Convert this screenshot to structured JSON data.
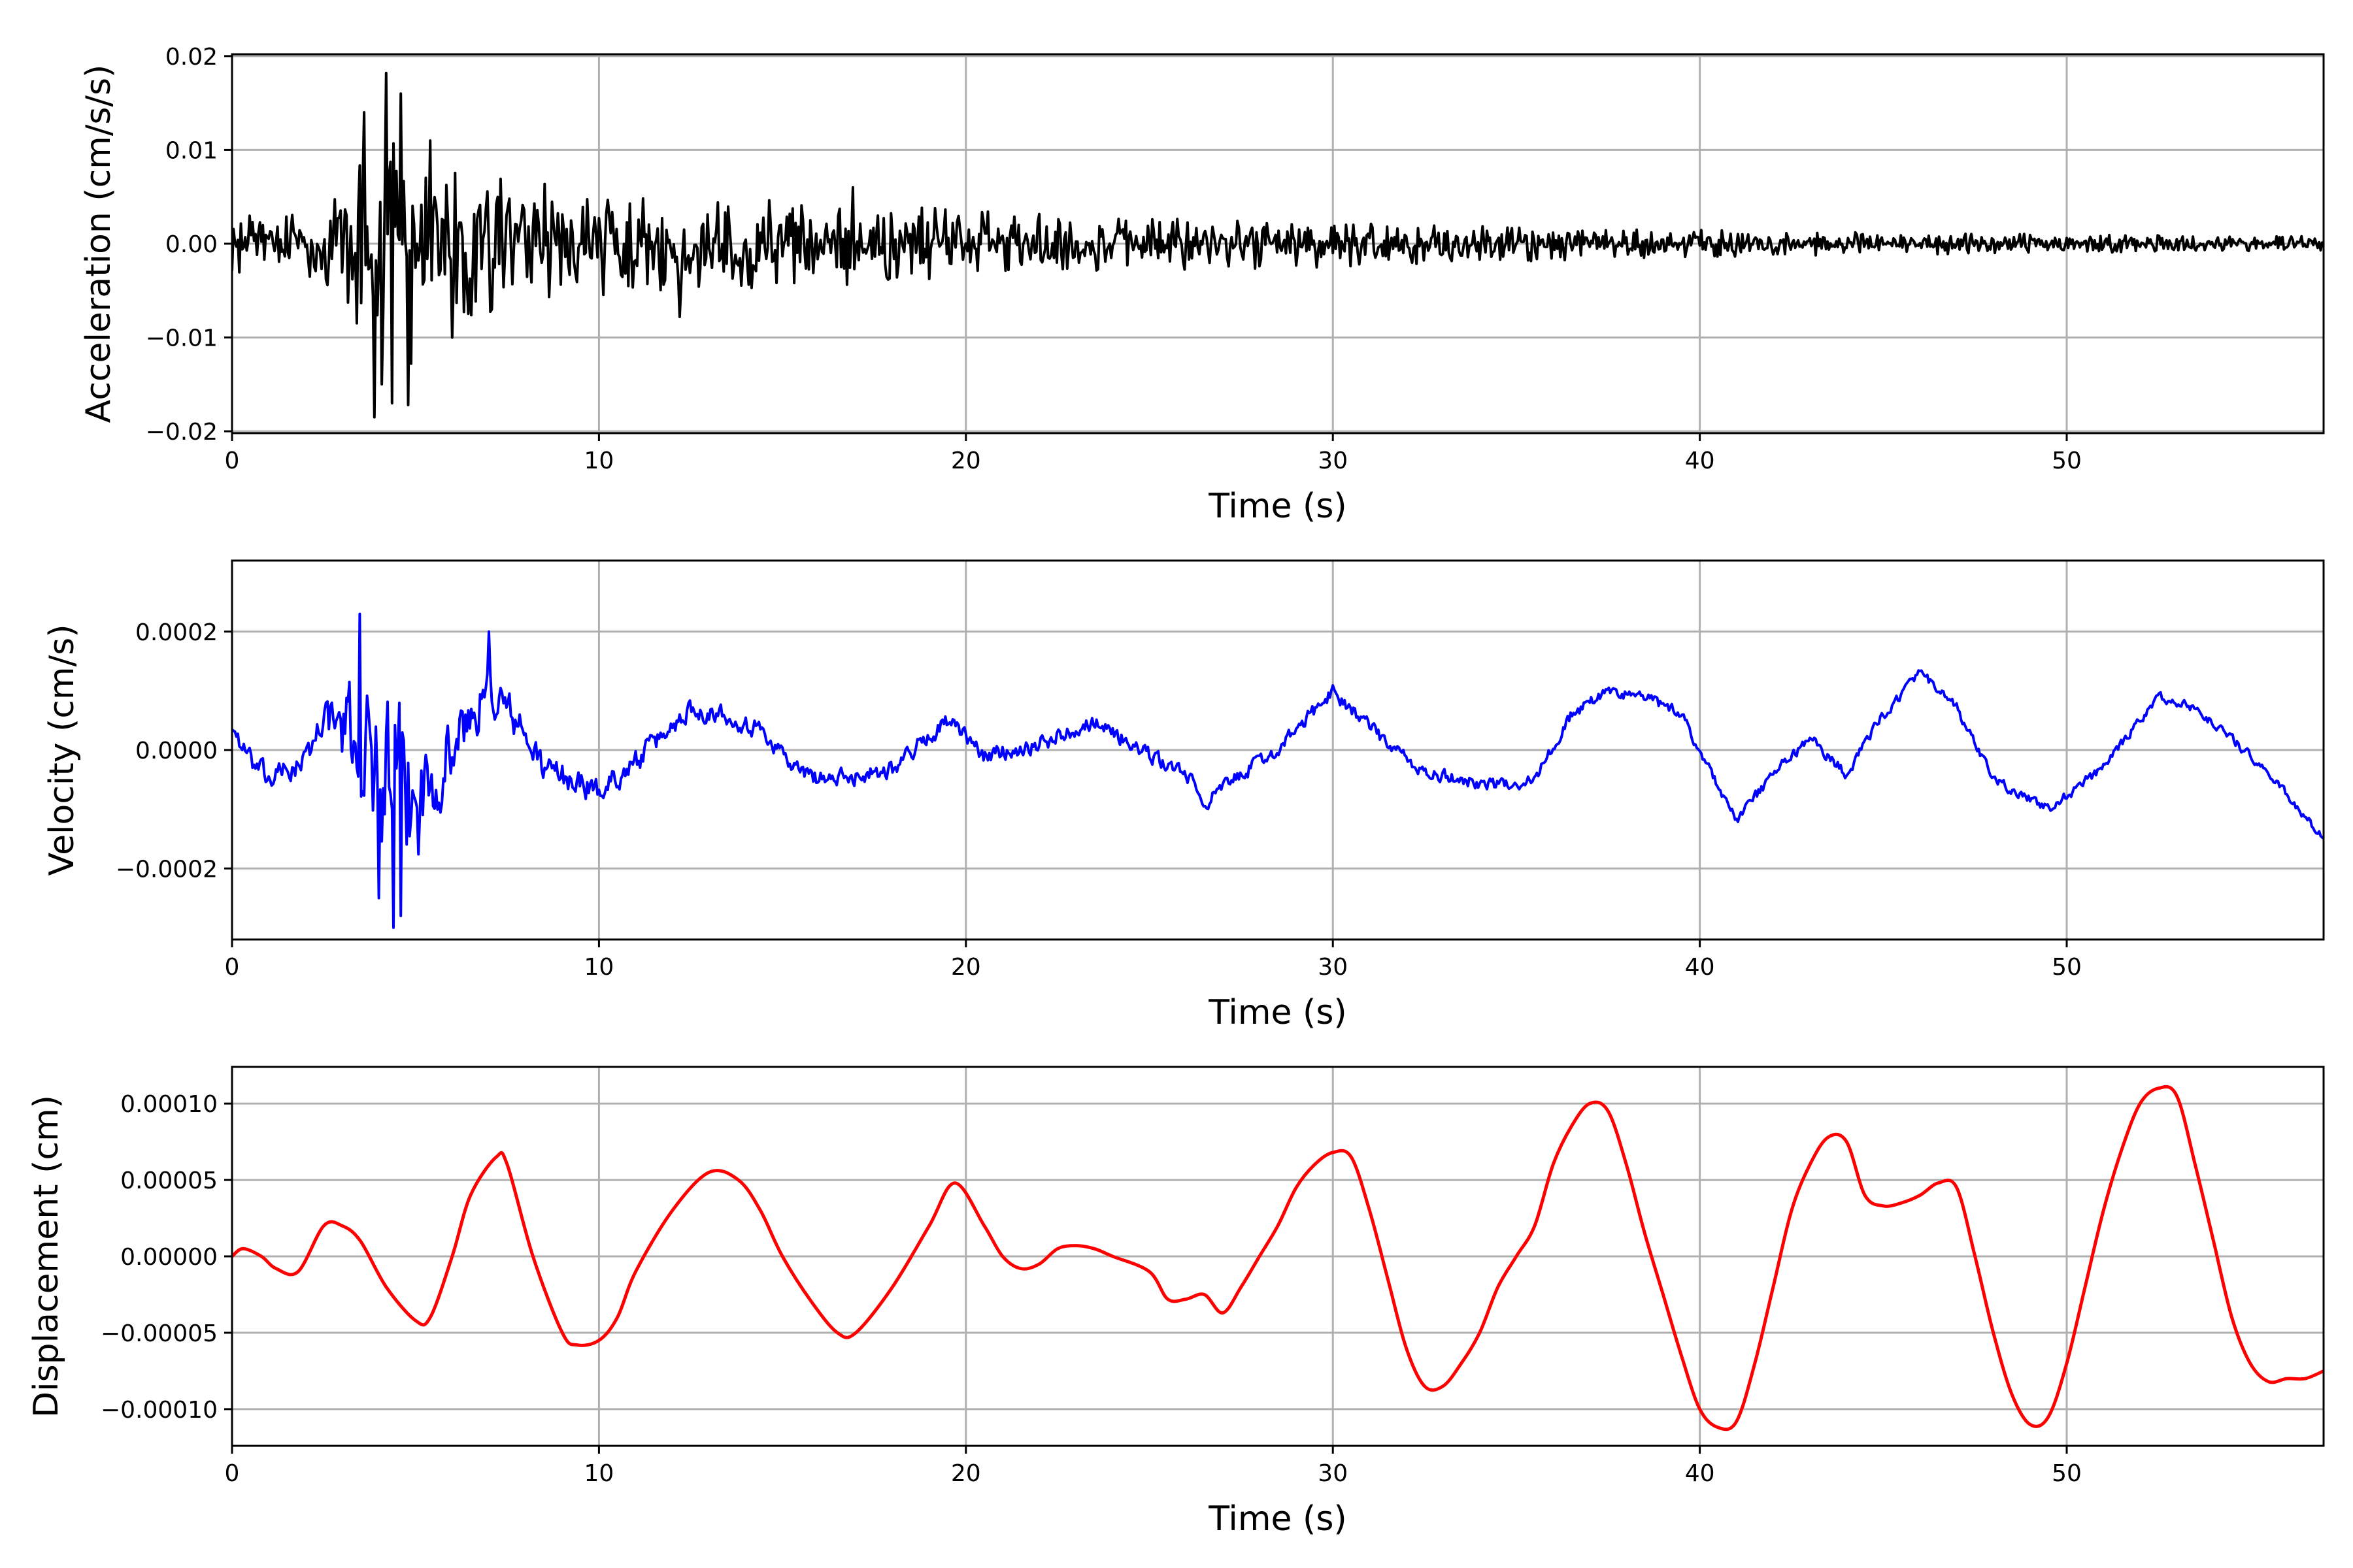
{
  "chart_data": [
    {
      "type": "line",
      "xlabel": "Time (s)",
      "ylabel": "Acceleration (cm/s/s)",
      "xlim": [
        0,
        57
      ],
      "ylim": [
        -0.0202,
        0.0202
      ],
      "xticks": [
        0,
        10,
        20,
        30,
        40,
        50
      ],
      "xtick_labels": [
        "0",
        "10",
        "20",
        "30",
        "40",
        "50"
      ],
      "yticks": [
        -0.02,
        -0.01,
        0.0,
        0.01,
        0.02
      ],
      "ytick_labels": [
        "−0.02",
        "−0.01",
        "0.00",
        "0.01",
        "0.02"
      ],
      "grid": true,
      "color": "#000000",
      "series": [
        {
          "kind": "noisy",
          "dt": 0.04,
          "envelope": {
            "x": [
              0,
              2.5,
              3.5,
              4.2,
              5.0,
              6.0,
              8,
              10,
              13,
              17,
              20,
              25,
              30,
              35,
              40,
              45,
              50,
              57
            ],
            "y": [
              0.003,
              0.004,
              0.012,
              0.018,
              0.012,
              0.008,
              0.007,
              0.0055,
              0.005,
              0.0045,
              0.0035,
              0.003,
              0.0025,
              0.002,
              0.0015,
              0.0012,
              0.001,
              0.0008
            ]
          },
          "peaks": {
            "x": [
              3.6,
              3.9,
              4.2,
              4.35,
              4.6,
              4.8,
              5.4,
              6.0,
              12.2,
              16.9
            ],
            "y": [
              0.014,
              -0.0185,
              0.0182,
              -0.017,
              0.016,
              -0.0172,
              0.011,
              -0.01,
              -0.0078,
              0.006
            ]
          }
        }
      ]
    },
    {
      "type": "line",
      "xlabel": "Time (s)",
      "ylabel": "Velocity (cm/s)",
      "xlim": [
        0,
        57
      ],
      "ylim": [
        -0.00032,
        0.00032
      ],
      "xticks": [
        0,
        10,
        20,
        30,
        40,
        50
      ],
      "xtick_labels": [
        "0",
        "10",
        "20",
        "30",
        "40",
        "50"
      ],
      "yticks": [
        -0.0002,
        0.0,
        0.0002
      ],
      "ytick_labels": [
        "−0.0002",
        "0.0000",
        "0.0002"
      ],
      "grid": true,
      "color": "#0000ff",
      "series": [
        {
          "kind": "trend-noise",
          "dt": 0.04,
          "trend": {
            "x": [
              0,
              0.5,
              1.0,
              2.0,
              2.5,
              3.5,
              4.2,
              5.0,
              5.5,
              6.5,
              7.0,
              7.5,
              8.5,
              10.0,
              11.0,
              12.5,
              13.5,
              14.5,
              15.5,
              16.5,
              18.0,
              19.5,
              20.5,
              22.0,
              23.5,
              25.0,
              26.0,
              26.5,
              27.5,
              28.5,
              30.0,
              31.5,
              32.5,
              34.5,
              35.5,
              36.5,
              37.5,
              38.5,
              39.5,
              41.0,
              42.0,
              43.0,
              44.0,
              45.0,
              46.0,
              47.0,
              48.0,
              49.5,
              51.0,
              52.5,
              53.5,
              54.5,
              55.5,
              57.0
            ],
            "y": [
              4e-05,
              -2e-05,
              -5e-05,
              -2e-05,
              6e-05,
              1e-05,
              -4e-05,
              -0.0001,
              -4e-05,
              5e-05,
              0.0001,
              7e-05,
              -3e-05,
              -7e-05,
              -2e-05,
              7e-05,
              6e-05,
              3e-05,
              -4e-05,
              -5e-05,
              -3e-05,
              5e-05,
              -1e-05,
              1e-05,
              5e-05,
              -1e-05,
              -4e-05,
              -9e-05,
              -4e-05,
              0.0,
              0.0001,
              1e-05,
              -4e-05,
              -6e-05,
              -5e-05,
              6e-05,
              0.0001,
              9e-05,
              6e-05,
              -0.00012,
              -4e-05,
              2e-05,
              -4e-05,
              6e-05,
              0.00013,
              7e-05,
              -5e-05,
              -0.0001,
              -3e-05,
              9e-05,
              7e-05,
              2e-05,
              -4e-05,
              -0.00015
            ]
          },
          "noise": {
            "x": [
              0,
              2.5,
              3.5,
              4.5,
              5.5,
              6.5,
              8.5,
              12,
              20,
              30,
              40,
              57
            ],
            "y": [
              1.5e-05,
              2e-05,
              9e-05,
              0.00012,
              6e-05,
              4e-05,
              2e-05,
              1.5e-05,
              1.2e-05,
              1e-05,
              8e-06,
              6e-06
            ]
          },
          "peaks": {
            "x": [
              3.5,
              4.0,
              4.4,
              4.6,
              7.0
            ],
            "y": [
              0.00023,
              -0.00025,
              -0.0003,
              -0.00028,
              0.0002
            ]
          }
        }
      ]
    },
    {
      "type": "line",
      "xlabel": "Time (s)",
      "ylabel": "Displacement (cm)",
      "xlim": [
        0,
        57
      ],
      "ylim": [
        -0.000124,
        0.000124
      ],
      "xticks": [
        0,
        10,
        20,
        30,
        40,
        50
      ],
      "xtick_labels": [
        "0",
        "10",
        "20",
        "30",
        "40",
        "50"
      ],
      "yticks": [
        -0.0001,
        -5e-05,
        0.0,
        5e-05,
        0.0001
      ],
      "ytick_labels": [
        "−0.00010",
        "−0.00005",
        "0.00000",
        "0.00005",
        "0.00010"
      ],
      "grid": true,
      "color": "#ff0000",
      "series": [
        {
          "kind": "smooth",
          "x": [
            0,
            0.3,
            0.8,
            1.2,
            1.8,
            2.5,
            3.0,
            3.5,
            4.2,
            5.0,
            5.4,
            6.0,
            6.5,
            7.2,
            7.5,
            8.2,
            9.0,
            9.4,
            10.0,
            10.5,
            11.0,
            12.0,
            13.0,
            13.8,
            14.4,
            15.0,
            15.8,
            16.5,
            17.0,
            18.0,
            19.0,
            19.7,
            20.5,
            21.0,
            21.5,
            22.0,
            22.5,
            23.0,
            23.5,
            24.0,
            25.0,
            25.5,
            26.0,
            26.5,
            27.0,
            27.5,
            28.0,
            28.5,
            29.0,
            29.5,
            30.0,
            30.5,
            31.0,
            31.5,
            32.0,
            32.5,
            33.0,
            33.5,
            34.0,
            34.5,
            35.0,
            35.5,
            36.0,
            36.5,
            37.0,
            37.5,
            38.0,
            38.5,
            39.0,
            39.5,
            40.0,
            40.5,
            41.0,
            41.5,
            42.0,
            42.5,
            43.0,
            43.5,
            44.0,
            44.5,
            45.0,
            45.5,
            46.0,
            46.5,
            47.0,
            47.5,
            48.0,
            48.5,
            49.0,
            49.5,
            50.0,
            50.5,
            51.0,
            51.5,
            52.0,
            52.5,
            53.0,
            53.5,
            54.0,
            54.5,
            55.0,
            55.5,
            56.0,
            56.5,
            57.0
          ],
          "y": [
            0.0,
            5e-06,
            0.0,
            -8e-06,
            -1e-05,
            2e-05,
            2e-05,
            1e-05,
            -2e-05,
            -4.2e-05,
            -4e-05,
            0.0,
            4e-05,
            6.5e-05,
            6e-05,
            0.0,
            -5e-05,
            -5.8e-05,
            -5.5e-05,
            -4e-05,
            -1e-05,
            3e-05,
            5.5e-05,
            5e-05,
            3e-05,
            0.0,
            -3e-05,
            -5e-05,
            -5e-05,
            -2e-05,
            2e-05,
            4.8e-05,
            2e-05,
            0.0,
            -8e-06,
            -5e-06,
            5e-06,
            7e-06,
            5e-06,
            0.0,
            -1e-05,
            -2.8e-05,
            -2.8e-05,
            -2.5e-05,
            -3.7e-05,
            -2e-05,
            0.0,
            2e-05,
            4.5e-05,
            6e-05,
            6.8e-05,
            6.5e-05,
            3e-05,
            -1.5e-05,
            -6e-05,
            -8.5e-05,
            -8.5e-05,
            -7e-05,
            -5e-05,
            -2e-05,
            0.0,
            2e-05,
            6e-05,
            8.5e-05,
            0.0001,
            9.5e-05,
            6e-05,
            1.5e-05,
            -2.5e-05,
            -6.5e-05,
            -0.0001,
            -0.000112,
            -0.000108,
            -7e-05,
            -2e-05,
            3e-05,
            6e-05,
            7.8e-05,
            7.5e-05,
            4e-05,
            3.3e-05,
            3.5e-05,
            4e-05,
            4.8e-05,
            4.5e-05,
            0.0,
            -5e-05,
            -9e-05,
            -0.00011,
            -0.000105,
            -7e-05,
            -2e-05,
            3e-05,
            7e-05,
            0.0001,
            0.00011,
            0.000105,
            6e-05,
            1e-05,
            -4e-05,
            -7e-05,
            -8.2e-05,
            -8e-05,
            -8e-05,
            -7.5e-05
          ]
        }
      ]
    }
  ]
}
